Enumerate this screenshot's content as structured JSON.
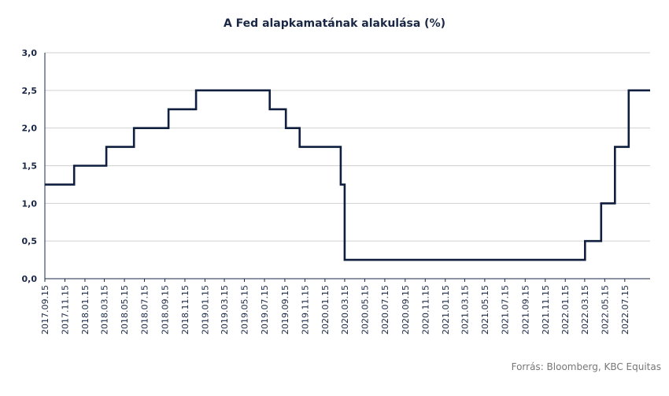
{
  "colors": {
    "line": "#0f1f3d",
    "grid": "#d0d0d0",
    "axis": "#1a2744",
    "source": "#777777"
  },
  "source_note": "Forrás: Bloomberg,  KBC Equitas",
  "chart_data": {
    "type": "line",
    "line_shape": "step",
    "title": "A Fed  alapkamatának alakulása (%)",
    "xlabel": "",
    "ylabel": "",
    "ylim": [
      0,
      3
    ],
    "yticks": [
      "0,0",
      "0,5",
      "1,0",
      "1,5",
      "2,0",
      "2,5",
      "3,0"
    ],
    "grid": "horizontal",
    "xlim": [
      "2017-09-15",
      "2022-09-30"
    ],
    "xticks": [
      "2017.09.15",
      "2017.11.15",
      "2018.01.15",
      "2018.03.15",
      "2018.05.15",
      "2018.07.15",
      "2018.09.15",
      "2018.11.15",
      "2019.01.15",
      "2019.03.15",
      "2019.05.15",
      "2019.07.15",
      "2019.09.15",
      "2019.11.15",
      "2020.01.15",
      "2020.03.15",
      "2020.05.15",
      "2020.07.15",
      "2020.09.15",
      "2020.11.15",
      "2021.01.15",
      "2021.03.15",
      "2021.05.15",
      "2021.07.15",
      "2021.09.15",
      "2021.11.15",
      "2022.01.15",
      "2022.03.15",
      "2022.05.15",
      "2022.07.15"
    ],
    "series": [
      {
        "points": [
          [
            "2017-09-15",
            1.25
          ],
          [
            "2017-12-13",
            1.5
          ],
          [
            "2018-03-21",
            1.75
          ],
          [
            "2018-06-13",
            2.0
          ],
          [
            "2018-09-26",
            2.25
          ],
          [
            "2018-12-19",
            2.5
          ],
          [
            "2019-07-31",
            2.25
          ],
          [
            "2019-09-18",
            2.0
          ],
          [
            "2019-10-30",
            1.75
          ],
          [
            "2020-03-03",
            1.25
          ],
          [
            "2020-03-15",
            0.25
          ],
          [
            "2022-03-16",
            0.5
          ],
          [
            "2022-05-04",
            1.0
          ],
          [
            "2022-06-15",
            1.75
          ],
          [
            "2022-07-27",
            2.5
          ],
          [
            "2022-09-30",
            2.5
          ]
        ]
      }
    ]
  }
}
